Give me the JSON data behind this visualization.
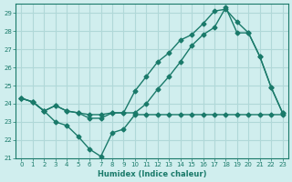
{
  "xlabel": "Humidex (Indice chaleur)",
  "ylabel": "",
  "xlim": [
    -0.5,
    23.5
  ],
  "ylim": [
    21,
    29.5
  ],
  "yticks": [
    21,
    22,
    23,
    24,
    25,
    26,
    27,
    28,
    29
  ],
  "xticks": [
    0,
    1,
    2,
    3,
    4,
    5,
    6,
    7,
    8,
    9,
    10,
    11,
    12,
    13,
    14,
    15,
    16,
    17,
    18,
    19,
    20,
    21,
    22,
    23
  ],
  "bg_color": "#d0eeee",
  "grid_color": "#b0d8d8",
  "line_color": "#1a7a6a",
  "line1_x": [
    0,
    1,
    2,
    3,
    4,
    5,
    6,
    7,
    8,
    9,
    10,
    11,
    12,
    13,
    14,
    15,
    16,
    17,
    18,
    19,
    20,
    21,
    22,
    23
  ],
  "line1_y": [
    24.3,
    24.1,
    23.6,
    23.0,
    22.8,
    22.2,
    21.5,
    21.1,
    22.4,
    22.6,
    23.4,
    23.4,
    23.4,
    23.4,
    23.4,
    23.4,
    23.4,
    23.4,
    23.4,
    23.4,
    23.4,
    23.4,
    23.4,
    23.4
  ],
  "line2_x": [
    0,
    1,
    2,
    3,
    4,
    5,
    6,
    7,
    8,
    9,
    10,
    11,
    12,
    13,
    14,
    15,
    16,
    17,
    18,
    19,
    20,
    21,
    22,
    23
  ],
  "line2_y": [
    24.3,
    24.1,
    23.6,
    23.9,
    23.6,
    23.5,
    23.4,
    23.4,
    23.5,
    23.5,
    23.5,
    24.0,
    24.8,
    25.5,
    26.3,
    27.2,
    27.8,
    28.2,
    29.3,
    27.9,
    27.9,
    26.6,
    24.9,
    23.5
  ],
  "line3_x": [
    0,
    1,
    2,
    3,
    4,
    5,
    6,
    7,
    8,
    9,
    10,
    11,
    12,
    13,
    14,
    15,
    16,
    17,
    18,
    19,
    20,
    21,
    22,
    23
  ],
  "line3_y": [
    24.3,
    24.1,
    23.6,
    23.9,
    23.6,
    23.5,
    23.2,
    23.2,
    23.5,
    23.5,
    24.7,
    25.5,
    26.3,
    26.8,
    27.5,
    27.8,
    28.4,
    29.1,
    29.2,
    28.5,
    27.9,
    26.6,
    24.9,
    23.5
  ]
}
